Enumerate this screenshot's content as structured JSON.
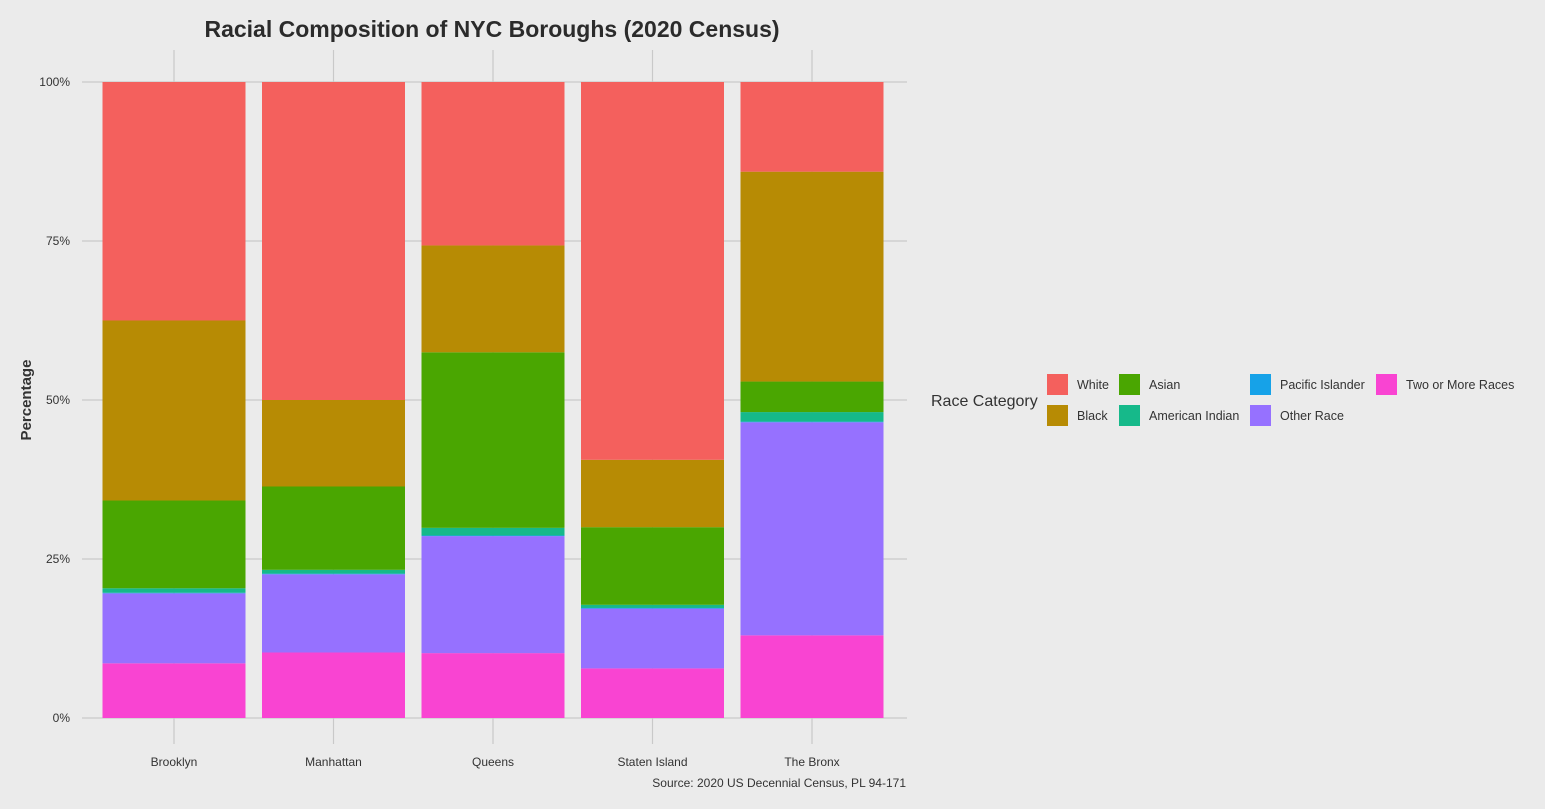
{
  "chart_data": {
    "type": "bar",
    "stacked": true,
    "normalized": true,
    "title": "Racial Composition of NYC Boroughs (2020 Census)",
    "xlabel": "",
    "ylabel": "Percentage",
    "ylim": [
      0,
      100
    ],
    "y_ticks": [
      "0%",
      "25%",
      "50%",
      "75%",
      "100%"
    ],
    "y_tick_values": [
      0,
      25,
      50,
      75,
      100
    ],
    "grid": true,
    "caption": "Source: 2020 US Decennial Census, PL 94-171",
    "legend_title": "Race Category",
    "legend_position": "right",
    "categories": [
      "Brooklyn",
      "Manhattan",
      "Queens",
      "Staten Island",
      "The Bronx"
    ],
    "series": [
      {
        "name": "Two or More Races",
        "color": "#f944d2",
        "values": [
          8.6,
          10.3,
          10.2,
          7.8,
          13.0
        ]
      },
      {
        "name": "Other Race",
        "color": "#9671ff",
        "values": [
          11.0,
          12.3,
          18.4,
          9.4,
          33.5
        ]
      },
      {
        "name": "Pacific Islander",
        "color": "#16a2e8",
        "values": [
          0.1,
          0.1,
          0.1,
          0.1,
          0.1
        ]
      },
      {
        "name": "American Indian",
        "color": "#16b98a",
        "values": [
          0.7,
          0.6,
          1.2,
          0.5,
          1.5
        ]
      },
      {
        "name": "Asian",
        "color": "#4aa601",
        "values": [
          13.8,
          13.1,
          27.6,
          12.2,
          4.8
        ]
      },
      {
        "name": "Black",
        "color": "#b78b04",
        "values": [
          28.3,
          13.6,
          16.8,
          10.6,
          33.0
        ]
      },
      {
        "name": "White",
        "color": "#f4605d",
        "values": [
          37.5,
          50.0,
          25.7,
          59.4,
          14.1
        ]
      }
    ],
    "legend_order": [
      "White",
      "Black",
      "Asian",
      "American Indian",
      "Pacific Islander",
      "Other Race",
      "Two or More Races"
    ]
  }
}
